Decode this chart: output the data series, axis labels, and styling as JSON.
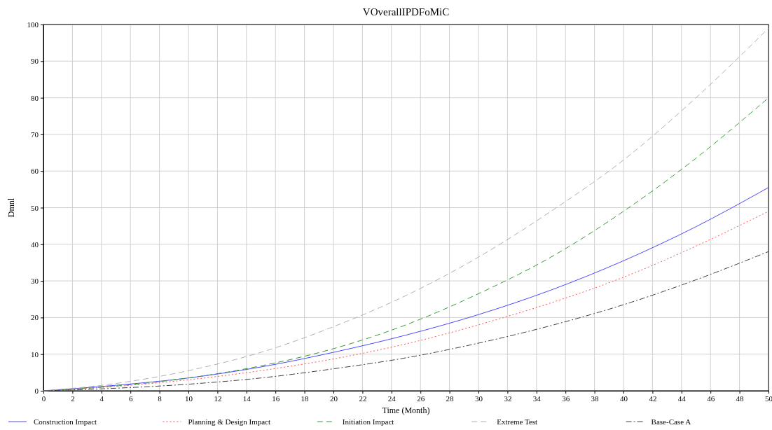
{
  "chart_data": {
    "type": "line",
    "title": "VOverallIPDFoMiC",
    "xlabel": "Time (Month)",
    "ylabel": "Dmnl",
    "x": [
      0,
      5,
      10,
      15,
      20,
      25,
      30,
      35,
      40,
      45,
      50
    ],
    "series": [
      {
        "name": "Construction Impact",
        "color": "#4a4aff",
        "line_style": "solid",
        "values": [
          0,
          1.5,
          3.5,
          6.5,
          10.5,
          15.2,
          20.8,
          27.5,
          35.5,
          44.8,
          55.5
        ]
      },
      {
        "name": "Planning & Design Impact",
        "color": "#ff5050",
        "line_style": "dotted",
        "values": [
          0,
          1.2,
          3,
          5.5,
          8.7,
          12.8,
          18,
          24,
          31,
          39.5,
          49
        ]
      },
      {
        "name": "Initiation Impact",
        "color": "#3a9a3a",
        "line_style": "dashed",
        "values": [
          0,
          1.3,
          3.5,
          6.8,
          11.5,
          18,
          26.5,
          36.5,
          49,
          63.5,
          80
        ]
      },
      {
        "name": "Extreme Test",
        "color": "#b0b0b0",
        "line_style": "dashed",
        "values": [
          0,
          2,
          5.5,
          10.5,
          17.5,
          26,
          36.5,
          49,
          63,
          80,
          99
        ]
      },
      {
        "name": "Base-Case A",
        "color": "#404040",
        "line_style": "dashdot",
        "values": [
          0,
          0.7,
          1.8,
          3.5,
          6,
          9,
          13,
          17.8,
          23.5,
          30.3,
          38
        ]
      }
    ],
    "xlim": [
      0,
      50
    ],
    "xticks": [
      0,
      2,
      4,
      6,
      8,
      10,
      12,
      14,
      16,
      18,
      20,
      22,
      24,
      26,
      28,
      30,
      32,
      34,
      36,
      38,
      40,
      42,
      44,
      46,
      48,
      50
    ],
    "ylim": [
      0,
      100
    ],
    "yticks": [
      0,
      10,
      20,
      30,
      40,
      50,
      60,
      70,
      80,
      90,
      100
    ],
    "grid": true,
    "legend": "bottom",
    "marker": "none"
  }
}
